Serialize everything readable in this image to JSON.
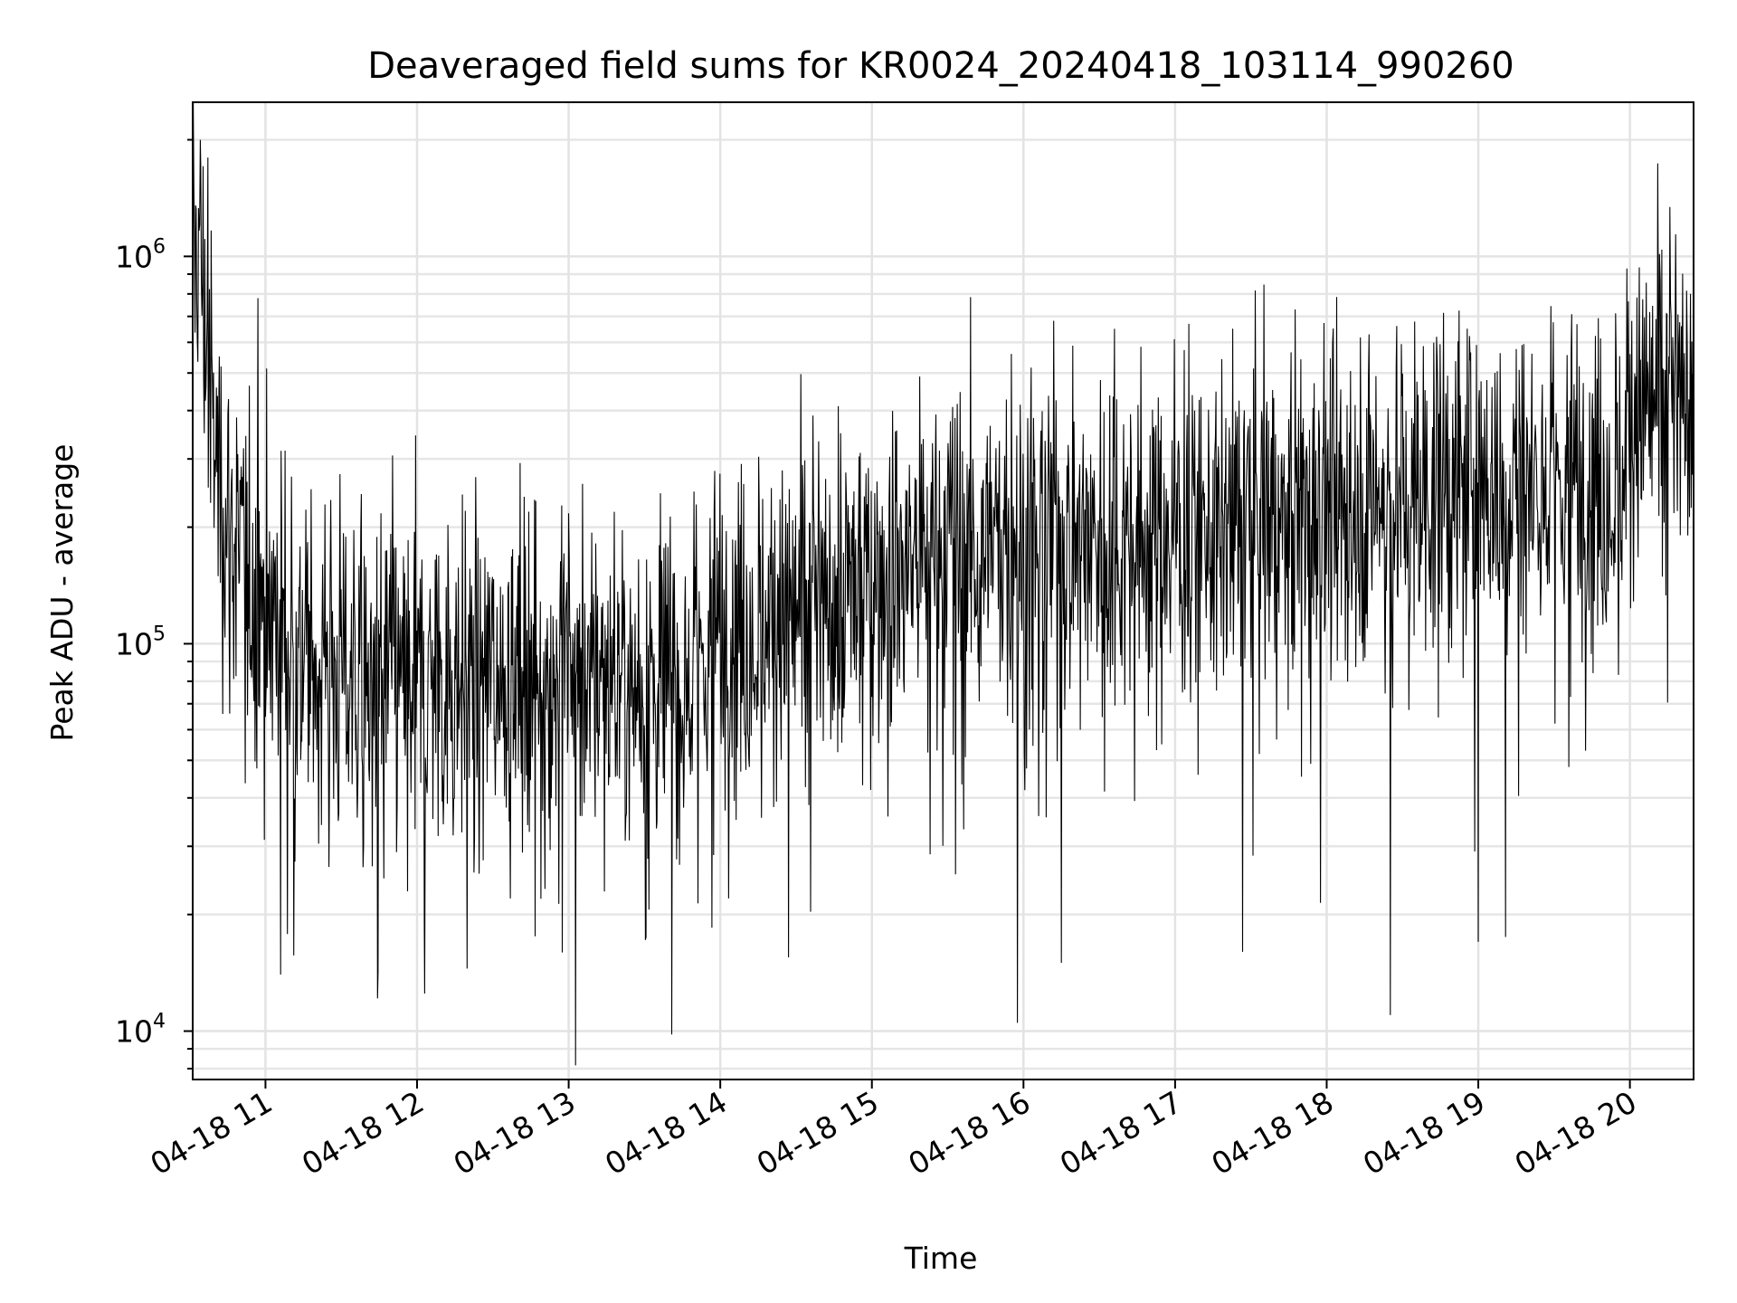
{
  "chart_data": {
    "type": "line",
    "title": "Deaveraged field sums for KR0024_20240418_103114_990260",
    "xlabel": "Time",
    "ylabel": "Peak ADU - average",
    "yscale": "log",
    "ylim": [
      7500,
      2500000
    ],
    "xlim_hours": [
      10.52,
      20.42
    ],
    "grid": true,
    "legend": "none",
    "line_color": "#000000",
    "x_ticks": [
      {
        "hour": 11,
        "label": "04-18 11"
      },
      {
        "hour": 12,
        "label": "04-18 12"
      },
      {
        "hour": 13,
        "label": "04-18 13"
      },
      {
        "hour": 14,
        "label": "04-18 14"
      },
      {
        "hour": 15,
        "label": "04-18 15"
      },
      {
        "hour": 16,
        "label": "04-18 16"
      },
      {
        "hour": 17,
        "label": "04-18 17"
      },
      {
        "hour": 18,
        "label": "04-18 18"
      },
      {
        "hour": 19,
        "label": "04-18 19"
      },
      {
        "hour": 20,
        "label": "04-18 20"
      }
    ],
    "y_ticks": [
      {
        "value": 10000,
        "base": "10",
        "exp": "4"
      },
      {
        "value": 100000,
        "base": "10",
        "exp": "5"
      },
      {
        "value": 1000000,
        "base": "10",
        "exp": "6"
      }
    ],
    "series": [
      {
        "trend_hours": [
          10.52,
          10.56,
          10.6,
          10.65,
          10.75,
          10.9,
          11.1,
          11.5,
          12.0,
          12.5,
          13.0,
          13.5,
          13.8,
          14.0,
          14.5,
          15.0,
          15.5,
          16.0,
          16.5,
          17.0,
          17.5,
          18.0,
          18.5,
          19.0,
          19.5,
          19.95,
          20.0,
          20.2,
          20.42
        ],
        "trend_values": [
          1000000,
          1100000,
          700000,
          350000,
          200000,
          150000,
          110000,
          85000,
          80000,
          85000,
          88000,
          80000,
          85000,
          110000,
          120000,
          150000,
          180000,
          185000,
          190000,
          195000,
          210000,
          230000,
          245000,
          260000,
          265000,
          270000,
          380000,
          430000,
          450000
        ],
        "spread": 0.22,
        "spike_down_samples": [
          {
            "hour": 11.1,
            "value": 14000
          },
          {
            "hour": 12.05,
            "value": 12500
          },
          {
            "hour": 12.33,
            "value": 14500
          },
          {
            "hour": 13.68,
            "value": 9800
          },
          {
            "hour": 14.45,
            "value": 15500
          },
          {
            "hour": 15.96,
            "value": 10500
          },
          {
            "hour": 16.25,
            "value": 15000
          },
          {
            "hour": 18.42,
            "value": 11000
          },
          {
            "hour": 19.0,
            "value": 17000
          },
          {
            "hour": 19.18,
            "value": 17500
          }
        ],
        "spike_up_samples": [
          {
            "hour": 10.57,
            "value": 2000000
          },
          {
            "hour": 10.62,
            "value": 1800000
          },
          {
            "hour": 10.95,
            "value": 780000
          },
          {
            "hour": 15.92,
            "value": 560000
          },
          {
            "hour": 16.6,
            "value": 650000
          },
          {
            "hour": 19.98,
            "value": 930000
          },
          {
            "hour": 20.2,
            "value": 870000
          },
          {
            "hour": 20.4,
            "value": 800000
          }
        ]
      }
    ]
  }
}
